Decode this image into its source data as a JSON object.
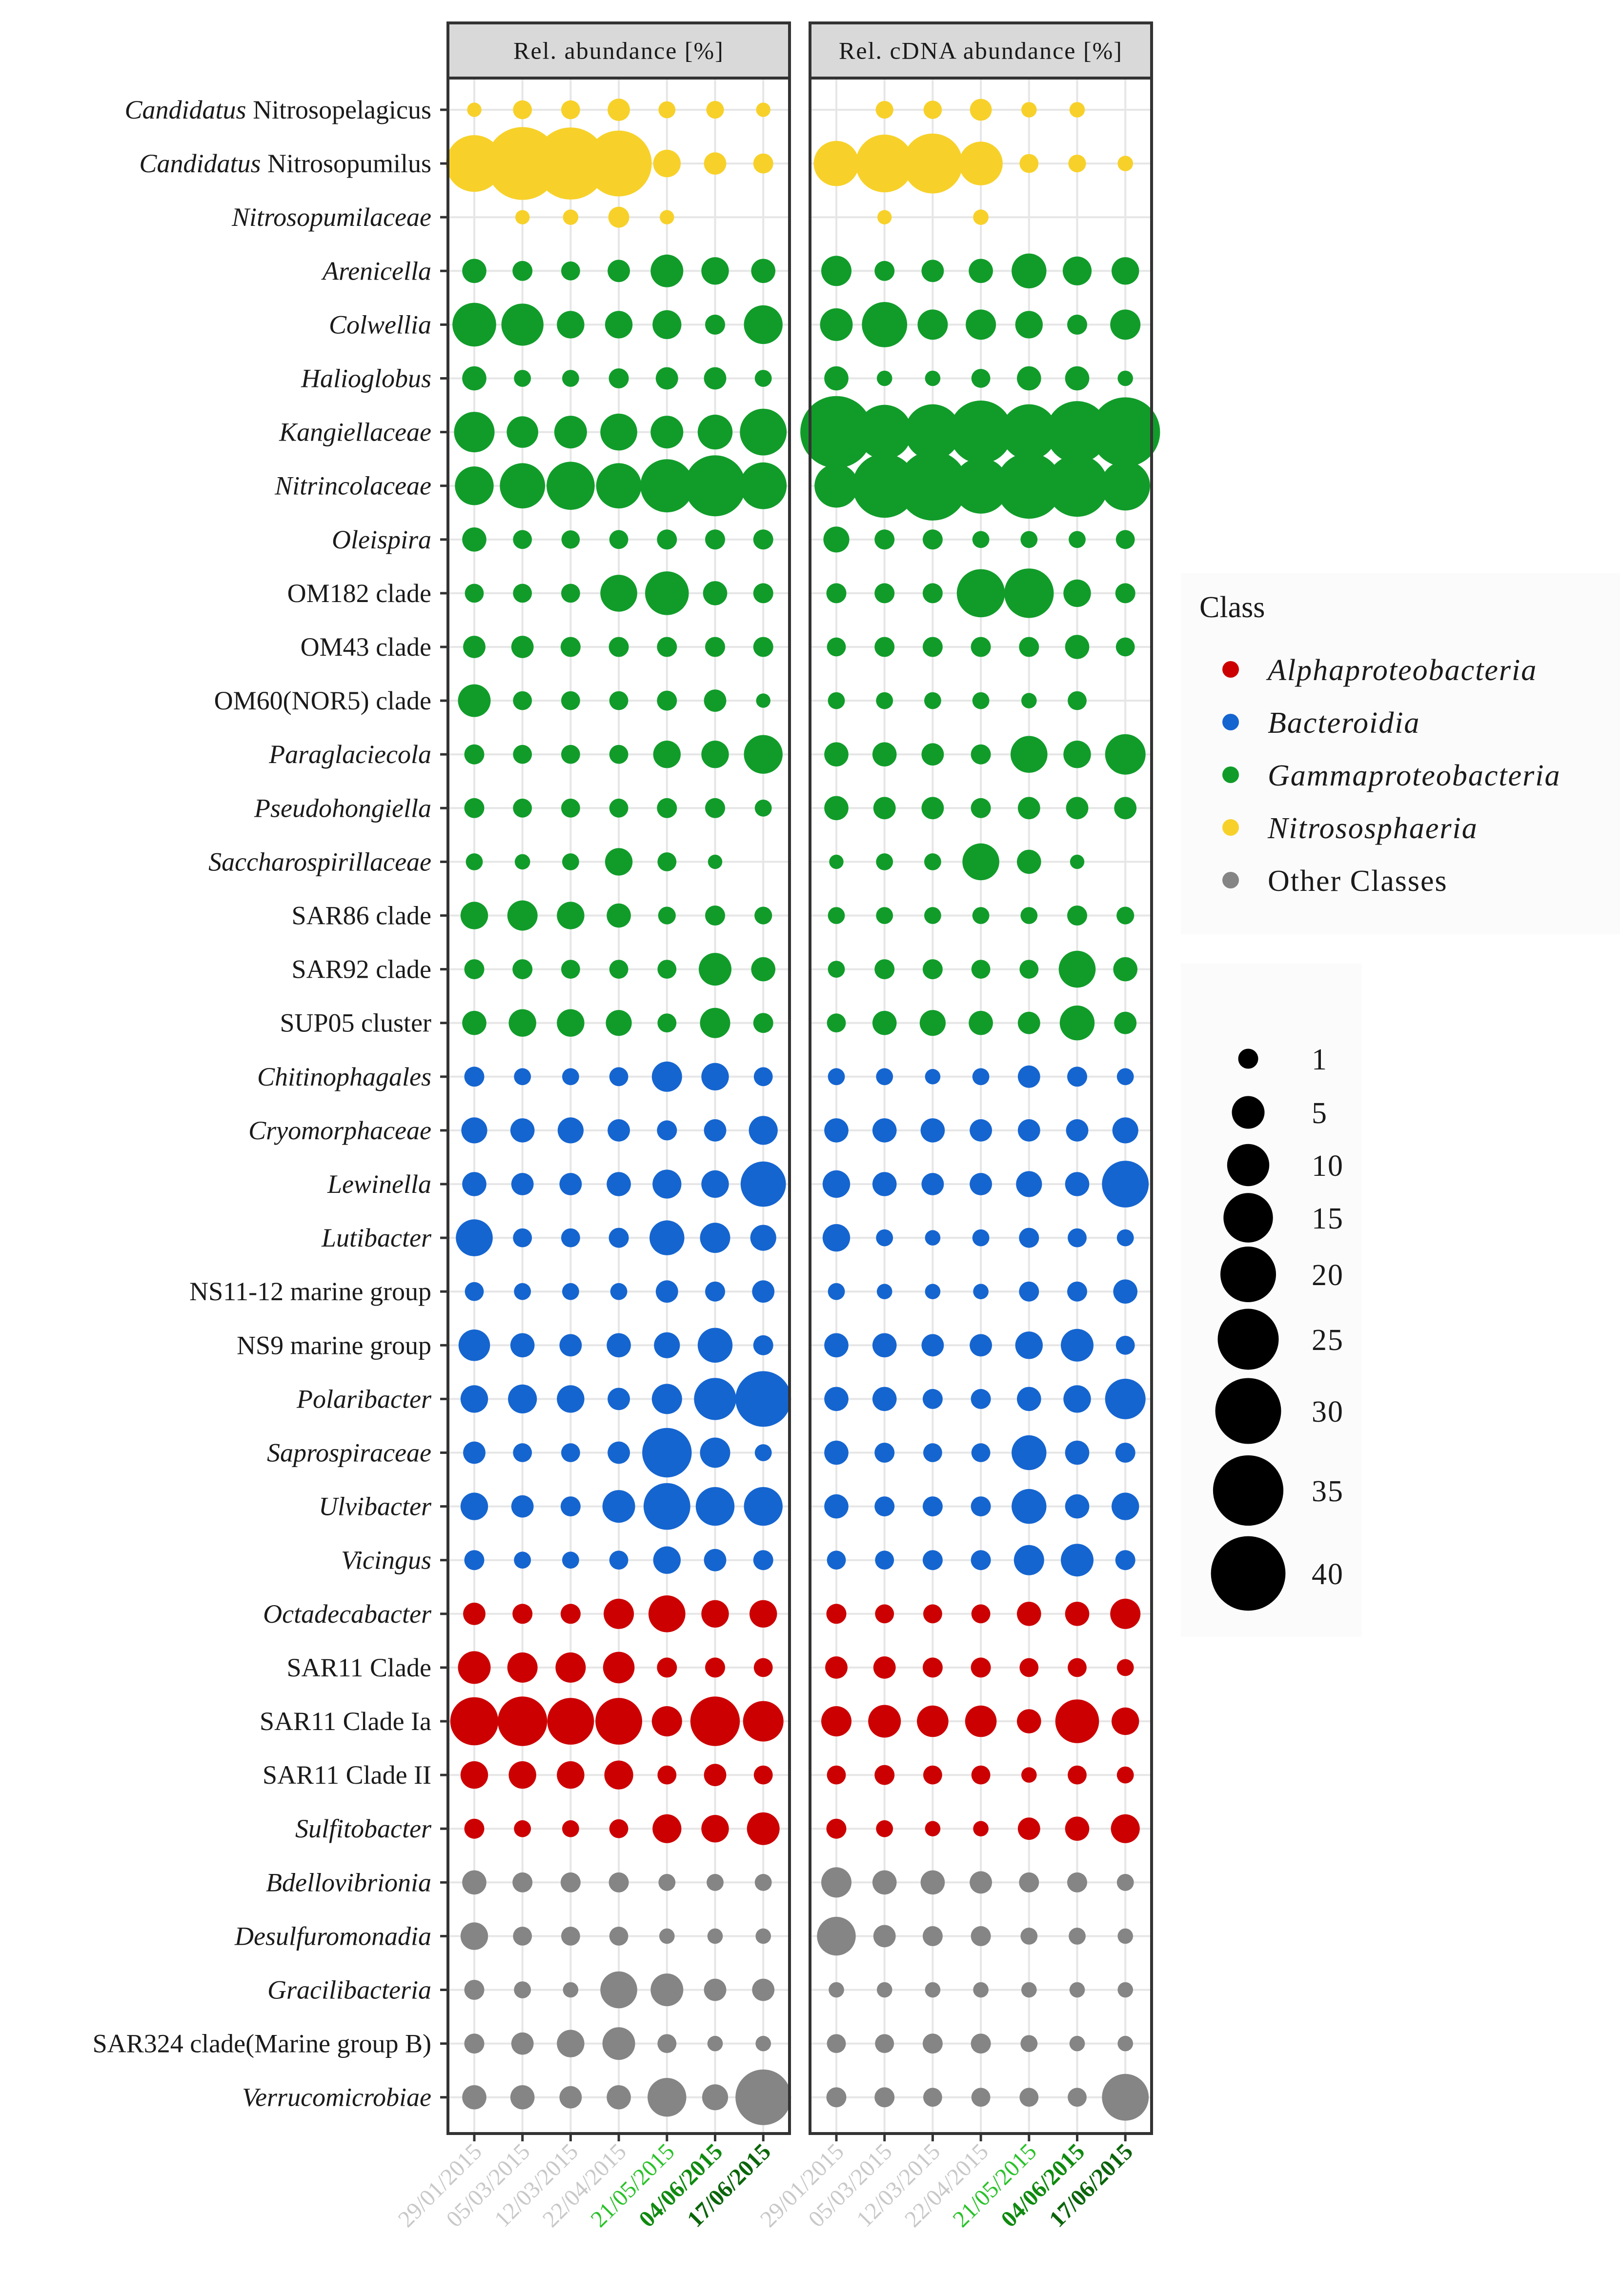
{
  "chart_data": {
    "type": "bubble-matrix",
    "panels": [
      "Rel. abundance [%]",
      "Rel. cDNA abundance [%]"
    ],
    "dates": [
      "29/01/2015",
      "05/03/2015",
      "12/03/2015",
      "22/04/2015",
      "21/05/2015",
      "04/06/2015",
      "17/06/2015"
    ],
    "date_colors": [
      "#c8c8c8",
      "#c8c8c8",
      "#c8c8c8",
      "#c8c8c8",
      "#28c228",
      "#0f8a0f",
      "#0a640a"
    ],
    "legend_title": "Class",
    "classes": [
      {
        "name": "Alphaproteobacteria",
        "italic": true,
        "color": "#cc0000"
      },
      {
        "name": "Bacteroidia",
        "italic": true,
        "color": "#1565d0"
      },
      {
        "name": "Gammaproteobacteria",
        "italic": true,
        "color": "#119c2a"
      },
      {
        "name": "Nitrososphaeria",
        "italic": true,
        "color": "#f7d12a"
      },
      {
        "name": "Other Classes",
        "italic": false,
        "color": "#858585"
      }
    ],
    "size_legend": [
      1,
      5,
      10,
      15,
      20,
      25,
      30,
      35,
      40
    ],
    "taxa": [
      {
        "name": "Candidatus Nitrosopelagicus",
        "parts": [
          [
            "Candidatus",
            true
          ],
          [
            "Nitrosopelagicus",
            false
          ]
        ],
        "class": 3,
        "dna": [
          0.2,
          0.8,
          0.8,
          1.5,
          0.5,
          0.6,
          0.2
        ],
        "cdna": [
          0,
          0.6,
          0.7,
          1.4,
          0.3,
          0.3,
          0
        ]
      },
      {
        "name": "Candidatus Nitrosopumilus",
        "parts": [
          [
            "Candidatus",
            true
          ],
          [
            "Nitrosopumilus",
            false
          ]
        ],
        "class": 3,
        "dna": [
          21,
          38,
          37,
          30,
          3,
          1.5,
          1
        ],
        "cdna": [
          12,
          22,
          24,
          11,
          0.8,
          0.6,
          0.3
        ]
      },
      {
        "name": "Nitrosopumilaceae",
        "parts": [
          [
            "Nitrosopumilaceae",
            true
          ]
        ],
        "class": 3,
        "dna": [
          0,
          0.2,
          0.3,
          1.2,
          0.2,
          0,
          0
        ],
        "cdna": [
          0,
          0.2,
          0,
          0.3,
          0,
          0,
          0
        ]
      },
      {
        "name": "Arenicella",
        "parts": [
          [
            "Arenicella",
            true
          ]
        ],
        "class": 2,
        "dna": [
          2,
          1,
          0.8,
          1.5,
          5,
          3,
          2
        ],
        "cdna": [
          4,
          1,
          1.5,
          2,
          6,
          3.5,
          3
        ]
      },
      {
        "name": "Colwellia",
        "parts": [
          [
            "Colwellia",
            true
          ]
        ],
        "class": 2,
        "dna": [
          11,
          10,
          3,
          3,
          3.5,
          1,
          8
        ],
        "cdna": [
          5,
          12,
          4,
          4,
          3,
          1,
          4
        ]
      },
      {
        "name": "Halioglobus",
        "parts": [
          [
            "Halioglobus",
            true
          ]
        ],
        "class": 2,
        "dna": [
          2,
          0.5,
          0.5,
          1,
          1.5,
          1.5,
          0.5
        ],
        "cdna": [
          2,
          0.3,
          0.3,
          0.8,
          2,
          2,
          0.3
        ]
      },
      {
        "name": "Kangiellaceae",
        "parts": [
          [
            "Kangiellaceae",
            true
          ]
        ],
        "class": 2,
        "dna": [
          9,
          4.5,
          5,
          7,
          5,
          6,
          13
        ],
        "cdna": [
          37,
          19,
          20,
          27,
          20,
          26,
          34
        ]
      },
      {
        "name": "Nitrincolaceae",
        "parts": [
          [
            "Nitrincolaceae",
            true
          ]
        ],
        "class": 2,
        "dna": [
          8,
          12,
          14,
          12,
          18,
          25,
          13
        ],
        "cdna": [
          11,
          28,
          34,
          20,
          30,
          26,
          15
        ]
      },
      {
        "name": "Oleispira",
        "parts": [
          [
            "Oleispira",
            true
          ]
        ],
        "class": 2,
        "dna": [
          2,
          0.8,
          0.7,
          0.8,
          1,
          1,
          1
        ],
        "cdna": [
          2.5,
          1,
          1,
          0.5,
          0.5,
          0.5,
          0.8
        ]
      },
      {
        "name": "OM182 clade",
        "parts": [
          [
            "OM182  clade",
            false
          ]
        ],
        "class": 2,
        "dna": [
          0.8,
          0.8,
          0.8,
          7,
          11,
          2,
          1
        ],
        "cdna": [
          1,
          1,
          1,
          14,
          15,
          3,
          1
        ]
      },
      {
        "name": "OM43 clade",
        "parts": [
          [
            "OM43  clade",
            false
          ]
        ],
        "class": 2,
        "dna": [
          1.5,
          1.5,
          1,
          1,
          1,
          1,
          1
        ],
        "cdna": [
          0.8,
          1,
          1,
          1,
          1,
          2,
          0.8
        ]
      },
      {
        "name": "OM60(NOR5) clade",
        "parts": [
          [
            "OM60(NOR5)  clade",
            false
          ]
        ],
        "class": 2,
        "dna": [
          5,
          0.8,
          0.8,
          0.8,
          1,
          1.5,
          0.2
        ],
        "cdna": [
          0.5,
          0.5,
          0.5,
          0.5,
          0.3,
          0.8,
          0
        ]
      },
      {
        "name": "Paraglaciecola",
        "parts": [
          [
            "Paraglaciecola",
            true
          ]
        ],
        "class": 2,
        "dna": [
          1,
          0.8,
          0.8,
          0.8,
          3,
          3,
          8
        ],
        "cdna": [
          2,
          2,
          1.5,
          1,
          7,
          3,
          9
        ]
      },
      {
        "name": "Pseudohongiella",
        "parts": [
          [
            "Pseudohongiella",
            true
          ]
        ],
        "class": 2,
        "dna": [
          1,
          0.8,
          0.8,
          0.8,
          1,
          1,
          0.5
        ],
        "cdna": [
          2,
          1.5,
          1.5,
          1,
          1.5,
          1.5,
          1.5
        ]
      },
      {
        "name": "Saccharospirillaceae",
        "parts": [
          [
            "Saccharospirillaceae",
            true
          ]
        ],
        "class": 2,
        "dna": [
          0.5,
          0.3,
          0.5,
          3,
          0.8,
          0.2,
          0
        ],
        "cdna": [
          0.2,
          0.5,
          0.5,
          7,
          2,
          0.2,
          0
        ]
      },
      {
        "name": "SAR86 clade",
        "parts": [
          [
            "SAR86  clade",
            false
          ]
        ],
        "class": 2,
        "dna": [
          3,
          4,
          3,
          2,
          0.6,
          1,
          0.6
        ],
        "cdna": [
          0.5,
          0.5,
          0.5,
          0.5,
          0.5,
          1,
          0.6
        ]
      },
      {
        "name": "SAR92 clade",
        "parts": [
          [
            "SAR92  clade",
            false
          ]
        ],
        "class": 2,
        "dna": [
          1,
          1,
          0.8,
          0.8,
          0.8,
          5,
          2
        ],
        "cdna": [
          0.5,
          1,
          1,
          0.8,
          0.8,
          7,
          2
        ]
      },
      {
        "name": "SUP05 cluster",
        "parts": [
          [
            "SUP05  cluster",
            false
          ]
        ],
        "class": 2,
        "dna": [
          2,
          3,
          3,
          2.5,
          0.8,
          4,
          1
        ],
        "cdna": [
          0.8,
          2,
          2.5,
          2,
          1.5,
          6,
          1.5
        ]
      },
      {
        "name": "Chitinophagales",
        "parts": [
          [
            "Chitinophagales",
            true
          ]
        ],
        "class": 1,
        "dna": [
          1,
          0.5,
          0.5,
          0.8,
          4,
          3,
          0.8
        ],
        "cdna": [
          0.5,
          0.5,
          0.3,
          0.5,
          1.5,
          1,
          0.5
        ]
      },
      {
        "name": "Cryomorphaceae",
        "parts": [
          [
            "Cryomorphaceae",
            true
          ]
        ],
        "class": 1,
        "dna": [
          2.5,
          2,
          2.5,
          1.5,
          1,
          1.5,
          3.5
        ],
        "cdna": [
          2,
          2,
          2,
          1.5,
          1.5,
          1.5,
          2.5
        ]
      },
      {
        "name": "Lewinella",
        "parts": [
          [
            "Lewinella",
            true
          ]
        ],
        "class": 1,
        "dna": [
          2,
          1.5,
          1.5,
          2,
          3.5,
          3,
          12
        ],
        "cdna": [
          3,
          2,
          1.5,
          1.5,
          2.5,
          2,
          13
        ]
      },
      {
        "name": "Lutibacter",
        "parts": [
          [
            "Lutibacter",
            true
          ]
        ],
        "class": 1,
        "dna": [
          7,
          0.8,
          0.8,
          1,
          6,
          4,
          2.5
        ],
        "cdna": [
          3,
          0.5,
          0.3,
          0.5,
          1,
          0.8,
          0.5
        ]
      },
      {
        "name": "NS11-12 marine group",
        "parts": [
          [
            "NS11-12  marine  group",
            false
          ]
        ],
        "class": 1,
        "dna": [
          0.8,
          0.5,
          0.5,
          0.5,
          1.5,
          1,
          1.5
        ],
        "cdna": [
          0.5,
          0.3,
          0.3,
          0.3,
          1,
          1,
          2
        ]
      },
      {
        "name": "NS9 marine group",
        "parts": [
          [
            "NS9  marine  group",
            false
          ]
        ],
        "class": 1,
        "dna": [
          4.5,
          2,
          1.5,
          2,
          2.5,
          6,
          1
        ],
        "cdna": [
          2,
          2,
          1.5,
          1.5,
          3,
          5,
          0.8
        ]
      },
      {
        "name": "Polaribacter",
        "parts": [
          [
            "Polaribacter",
            true
          ]
        ],
        "class": 1,
        "dna": [
          3,
          3.5,
          3,
          1.5,
          4,
          10,
          20
        ],
        "cdna": [
          2,
          2,
          1,
          1,
          2,
          3,
          9
        ]
      },
      {
        "name": "Saprospiraceae",
        "parts": [
          [
            "Saprospiraceae",
            true
          ]
        ],
        "class": 1,
        "dna": [
          1.5,
          0.8,
          0.8,
          1.5,
          15,
          4,
          0.5
        ],
        "cdna": [
          2,
          1,
          0.8,
          0.8,
          6,
          2,
          1
        ]
      },
      {
        "name": "Ulvibacter",
        "parts": [
          [
            "Ulvibacter",
            true
          ]
        ],
        "class": 1,
        "dna": [
          3,
          1.5,
          1,
          5,
          13,
          8,
          8
        ],
        "cdna": [
          2,
          1,
          1,
          1,
          6,
          2,
          3
        ]
      },
      {
        "name": "Vicingus",
        "parts": [
          [
            "Vicingus",
            true
          ]
        ],
        "class": 1,
        "dna": [
          1,
          0.5,
          0.5,
          0.8,
          3,
          1.5,
          1
        ],
        "cdna": [
          0.8,
          0.8,
          1,
          1,
          4,
          5,
          1
        ]
      },
      {
        "name": "Octadecabacter",
        "parts": [
          [
            "Octadecabacter",
            true
          ]
        ],
        "class": 0,
        "dna": [
          1.5,
          1,
          1,
          4,
          7,
          3,
          3
        ],
        "cdna": [
          1,
          0.8,
          0.8,
          0.8,
          2,
          2,
          4
        ]
      },
      {
        "name": "SAR11 Clade",
        "parts": [
          [
            "SAR11 Clade",
            false
          ]
        ],
        "class": 0,
        "dna": [
          5,
          4,
          4,
          4.5,
          1,
          1,
          0.8
        ],
        "cdna": [
          1.5,
          1.5,
          1,
          1,
          0.8,
          0.8,
          0.5
        ]
      },
      {
        "name": "SAR11 Clade Ia",
        "parts": [
          [
            "SAR11  Clade  Ia",
            false
          ]
        ],
        "class": 0,
        "dna": [
          14,
          15,
          13,
          13,
          4,
          15,
          9
        ],
        "cdna": [
          4,
          5,
          4.5,
          4.5,
          2,
          11,
          3
        ]
      },
      {
        "name": "SAR11 Clade II",
        "parts": [
          [
            "SAR11  Clade  II",
            false
          ]
        ],
        "class": 0,
        "dna": [
          3,
          3,
          3,
          3.5,
          0.8,
          1.5,
          0.8
        ],
        "cdna": [
          0.8,
          1,
          0.8,
          0.8,
          0.3,
          0.8,
          0.5
        ]
      },
      {
        "name": "Sulfitobacter",
        "parts": [
          [
            "Sulfitobacter",
            true
          ]
        ],
        "class": 0,
        "dna": [
          1,
          0.5,
          0.5,
          0.8,
          3.5,
          3,
          5
        ],
        "cdna": [
          1,
          0.5,
          0.3,
          0.3,
          1.5,
          2,
          3.5
        ]
      },
      {
        "name": "Bdellovibrionia",
        "parts": [
          [
            "Bdellovibrionia",
            true
          ]
        ],
        "class": 4,
        "dna": [
          2,
          1,
          1,
          1,
          0.5,
          0.5,
          0.5
        ],
        "cdna": [
          4,
          2,
          2,
          1.5,
          1,
          1,
          0.5
        ]
      },
      {
        "name": "Desulfuromonadia",
        "parts": [
          [
            "Desulfuromonadia",
            true
          ]
        ],
        "class": 4,
        "dna": [
          3,
          0.8,
          0.8,
          0.8,
          0.3,
          0.3,
          0.3
        ],
        "cdna": [
          8,
          1.5,
          1,
          1,
          0.5,
          0.5,
          0.3
        ]
      },
      {
        "name": "Gracilibacteria",
        "parts": [
          [
            "Gracilibacteria",
            true
          ]
        ],
        "class": 4,
        "dna": [
          1,
          0.5,
          0.3,
          7,
          5,
          1.5,
          1.5
        ],
        "cdna": [
          0.3,
          0.3,
          0.3,
          0.3,
          0.3,
          0.3,
          0.3
        ]
      },
      {
        "name": "SAR324 clade(Marine group B)",
        "parts": [
          [
            "SAR324  clade(Marine  group  B)",
            false
          ]
        ],
        "class": 4,
        "dna": [
          1,
          1.5,
          3,
          5,
          0.8,
          0.3,
          0.3
        ],
        "cdna": [
          0.8,
          0.8,
          1,
          1,
          0.5,
          0.3,
          0.3
        ]
      },
      {
        "name": "Verrucomicrobiae",
        "parts": [
          [
            "Verrucomicrobiae",
            true
          ]
        ],
        "class": 4,
        "dna": [
          2,
          2,
          1.5,
          2,
          8,
          2.5,
          20
        ],
        "cdna": [
          1,
          1,
          0.8,
          0.8,
          0.8,
          0.8,
          13
        ]
      }
    ]
  }
}
